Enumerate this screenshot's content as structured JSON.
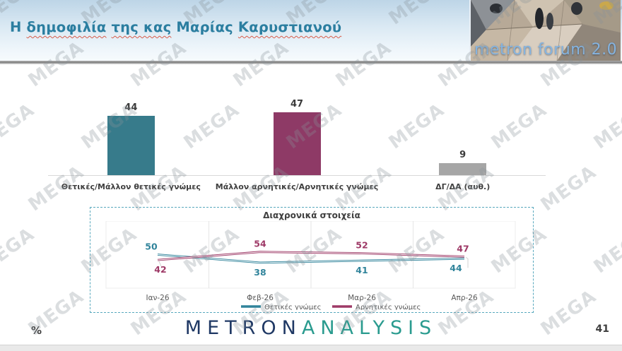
{
  "header": {
    "title_text": "Η δημοφιλία της κας Μαρίας Καρυστιανού",
    "title_parts": [
      {
        "text": "Η ",
        "spellcheck_underline": false
      },
      {
        "text": "δημοφιλία",
        "spellcheck_underline": true
      },
      {
        "text": " ",
        "spellcheck_underline": false
      },
      {
        "text": "της κας",
        "spellcheck_underline": true
      },
      {
        "text": " Μαρίας ",
        "spellcheck_underline": false
      },
      {
        "text": "Καρυστιανού",
        "spellcheck_underline": true
      }
    ],
    "logo_text": "metron forum 2.0"
  },
  "watermark": {
    "text": "MEGA"
  },
  "chart_data": [
    {
      "type": "bar",
      "title": "",
      "categories": [
        "Θετικές/Μάλλον θετικές γνώμες",
        "Μάλλον αρνητικές/Αρνητικές γνώμες",
        "ΔΓ/ΔΑ (αυθ.)"
      ],
      "values": [
        44,
        47,
        9
      ],
      "colors": [
        "#377b8b",
        "#8e3a66",
        "#a6a6a6"
      ],
      "ylim": [
        0,
        100
      ],
      "grid": "off",
      "data_labels": true
    },
    {
      "type": "line",
      "title": "Διαχρονικά στοιχεία",
      "x": [
        "Ιαν-26",
        "Φεβ-26",
        "Μαρ-26",
        "Απρ-26"
      ],
      "series": [
        {
          "name": "Θετικές γνώμες",
          "values": [
            50,
            38,
            41,
            44
          ],
          "color": "#31849b"
        },
        {
          "name": "Αρνητικές γνώμες",
          "values": [
            42,
            54,
            52,
            47
          ],
          "color": "#9e3a67"
        }
      ],
      "ylim": [
        0,
        100
      ],
      "legend_position": "bottom",
      "grid": "vertical",
      "data_labels": true
    }
  ],
  "footer": {
    "brand_primary": "METRON",
    "brand_secondary": "ANALYSIS",
    "percent_label": "%",
    "page_number": "41"
  },
  "colors": {
    "positive": "#377b8b",
    "negative": "#8e3a66",
    "neutral": "#a6a6a6",
    "title": "#2b7ea0",
    "box_border": "#58a8bd"
  }
}
